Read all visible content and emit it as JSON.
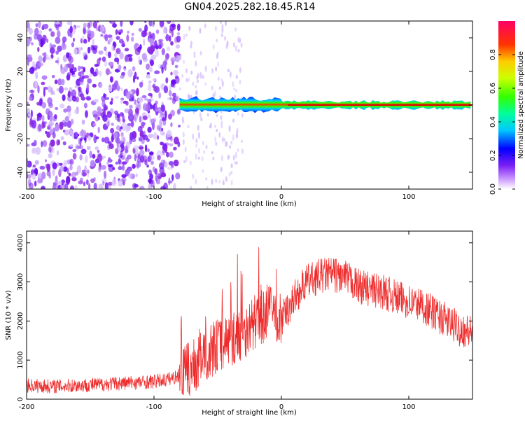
{
  "title": "GN04.2025.282.18.45.R14",
  "colors": {
    "line": "#ee2b2b",
    "axis": "#000000",
    "dot": "#7b1ff5"
  },
  "chart_data": [
    {
      "type": "heatmap",
      "xlabel": "Height of straight line (km)",
      "ylabel": "Frequency (Hz)",
      "xlim": [
        -200,
        150
      ],
      "ylim": [
        -50,
        50
      ],
      "xticks": [
        -200,
        -100,
        0,
        100
      ],
      "xtick_labels": [
        "-200",
        "-100",
        "0",
        "100"
      ],
      "yticks": [
        -40,
        -20,
        0,
        20,
        40
      ],
      "ytick_labels": [
        "-40",
        "-20",
        "0",
        "20",
        "40"
      ],
      "noise_region_x": [
        -200,
        -80
      ],
      "signal_band_start_x": -80,
      "signal_band_center_hz": 0,
      "colorbar": {
        "label": "Normalized spectral amplitude",
        "range": [
          0.0,
          1.0
        ],
        "ticks": [
          0.0,
          0.2,
          0.4,
          0.6,
          0.8
        ],
        "tick_labels": [
          "0.0",
          "0.2",
          "0.4",
          "0.6",
          "0.8"
        ]
      }
    },
    {
      "type": "line",
      "xlabel": "Height of straight line (km)",
      "ylabel": "SNR (10 * v/v)",
      "xlim": [
        -200,
        150
      ],
      "ylim": [
        0,
        4300
      ],
      "xticks": [
        -200,
        -100,
        0,
        100
      ],
      "xtick_labels": [
        "-200",
        "-100",
        "0",
        "100"
      ],
      "yticks": [
        0,
        1000,
        2000,
        3000,
        4000
      ],
      "ytick_labels": [
        "0",
        "1000",
        "2000",
        "3000",
        "4000"
      ],
      "series": [
        {
          "name": "SNR",
          "x": [
            -200,
            -180,
            -160,
            -140,
            -120,
            -100,
            -90,
            -80,
            -70,
            -60,
            -50,
            -40,
            -30,
            -20,
            -15,
            -10,
            -5,
            0,
            10,
            20,
            30,
            40,
            50,
            60,
            70,
            80,
            90,
            100,
            110,
            120,
            130,
            140,
            150
          ],
          "y": [
            350,
            330,
            350,
            380,
            420,
            450,
            500,
            600,
            800,
            1100,
            1400,
            1500,
            1700,
            2000,
            2100,
            2300,
            2200,
            2000,
            2600,
            3000,
            3150,
            3200,
            3100,
            2900,
            2800,
            2750,
            2600,
            2500,
            2400,
            2200,
            2000,
            1800,
            1700
          ]
        }
      ]
    }
  ]
}
